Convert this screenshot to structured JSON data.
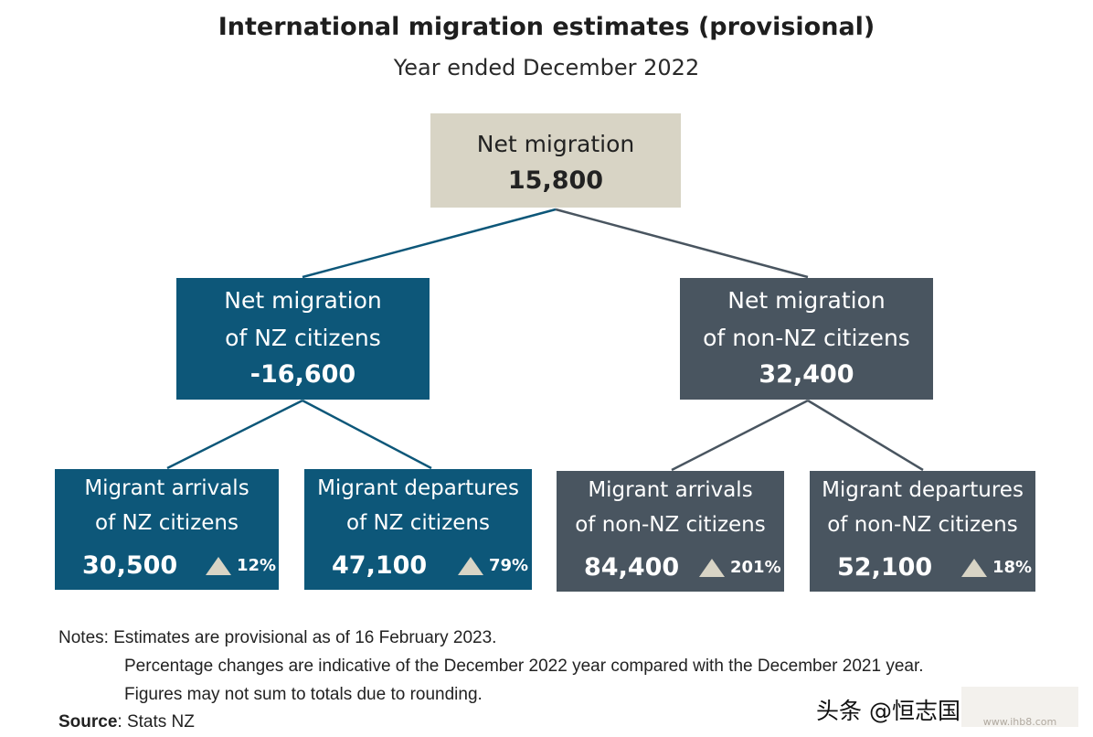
{
  "title": "International migration estimates (provisional)",
  "subtitle": "Year ended December 2022",
  "root": {
    "label": "Net migration",
    "value": "15,800"
  },
  "nz": {
    "label_line1": "Net migration",
    "label_line2": "of NZ citizens",
    "value": "-16,600"
  },
  "non_nz": {
    "label_line1": "Net migration",
    "label_line2": "of non-NZ citizens",
    "value": "32,400"
  },
  "leaves": [
    {
      "line1": "Migrant arrivals",
      "line2": "of NZ citizens",
      "value": "30,500",
      "change": "12%"
    },
    {
      "line1": "Migrant departures",
      "line2": "of NZ citizens",
      "value": "47,100",
      "change": "79%"
    },
    {
      "line1": "Migrant arrivals",
      "line2": "of non-NZ citizens",
      "value": "84,400",
      "change": "201%"
    },
    {
      "line1": "Migrant departures",
      "line2": "of non-NZ citizens",
      "value": "52,100",
      "change": "18%"
    }
  ],
  "notes": {
    "line1": "Notes: Estimates are provisional as of 16 February 2023.",
    "line2": "Percentage changes are indicative of the December 2022 year compared with the December 2021 year.",
    "line3": "Figures may not sum to totals due to rounding."
  },
  "source": {
    "label": "Source",
    "text": ": Stats NZ"
  },
  "watermark": {
    "text": "头条 @恒志国",
    "logo_text": "www.ihb8.com"
  },
  "colors": {
    "nz_box": "#0d5779",
    "non_nz_box": "#495560",
    "root_box": "#d8d4c5",
    "increase_triangle": "#d8d4c5"
  },
  "icons": {
    "increase": "up-triangle-icon"
  }
}
